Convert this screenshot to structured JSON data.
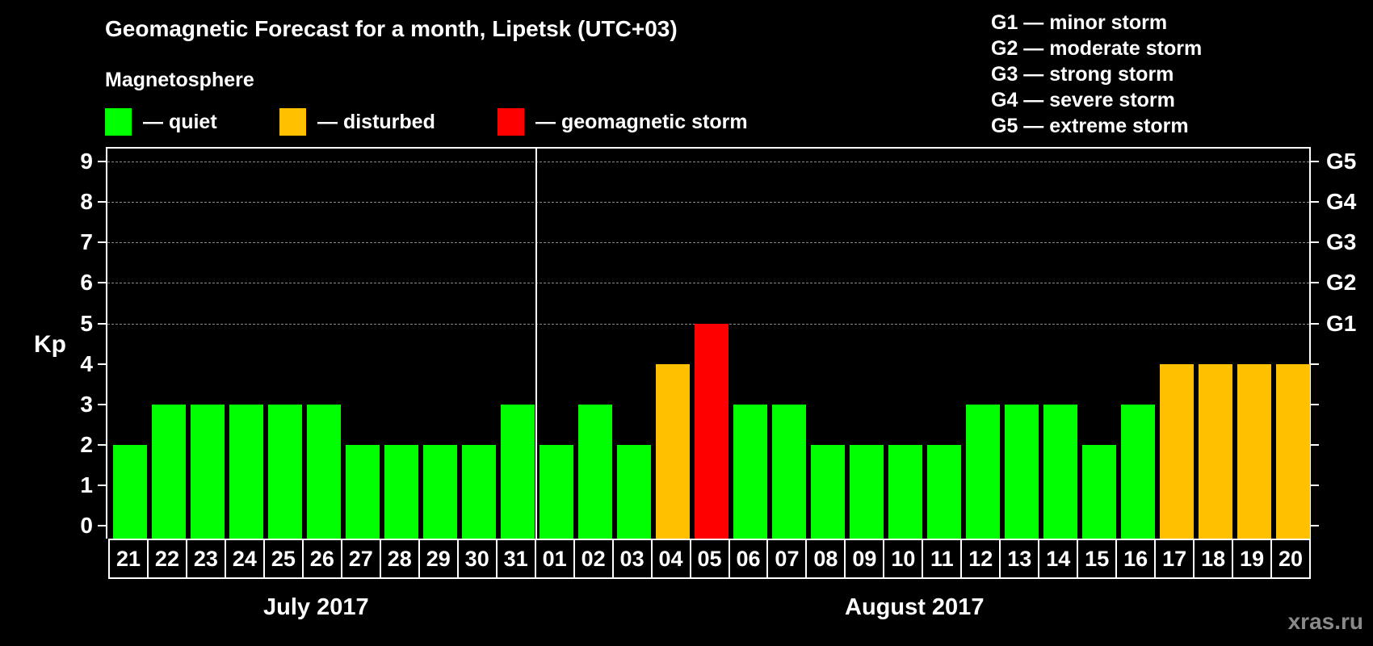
{
  "title": "Geomagnetic Forecast for a month, Lipetsk (UTC+03)",
  "legend": {
    "heading": "Magnetosphere",
    "items": [
      {
        "label": "— quiet",
        "color": "#00ff00"
      },
      {
        "label": "— disturbed",
        "color": "#ffc000"
      },
      {
        "label": "— geomagnetic storm",
        "color": "#ff0000"
      }
    ]
  },
  "storm_scale": [
    "G1 — minor storm",
    "G2 — moderate storm",
    "G3 — strong storm",
    "G4 — severe storm",
    "G5 — extreme storm"
  ],
  "axis": {
    "ylabel": "Kp",
    "yticks": [
      "0",
      "1",
      "2",
      "3",
      "4",
      "5",
      "6",
      "7",
      "8",
      "9"
    ],
    "right_labels": [
      {
        "kp": 5,
        "label": "G1"
      },
      {
        "kp": 6,
        "label": "G2"
      },
      {
        "kp": 7,
        "label": "G3"
      },
      {
        "kp": 8,
        "label": "G4"
      },
      {
        "kp": 9,
        "label": "G5"
      }
    ]
  },
  "months": [
    {
      "label": "July 2017"
    },
    {
      "label": "August 2017"
    }
  ],
  "watermark": "xras.ru",
  "colors": {
    "quiet": "#00ff00",
    "disturbed": "#ffc000",
    "storm": "#ff0000",
    "background": "#000000",
    "grid": "#888888"
  },
  "chart_data": {
    "type": "bar",
    "title": "Geomagnetic Forecast for a month, Lipetsk (UTC+03)",
    "xlabel": "July 2017 / August 2017",
    "ylabel": "Kp",
    "ylim": [
      0,
      9
    ],
    "grid": "dashed horizontal at Kp 5-9",
    "legend_position": "top",
    "categories": [
      "21",
      "22",
      "23",
      "24",
      "25",
      "26",
      "27",
      "28",
      "29",
      "30",
      "31",
      "01",
      "02",
      "03",
      "04",
      "05",
      "06",
      "07",
      "08",
      "09",
      "10",
      "11",
      "12",
      "13",
      "14",
      "15",
      "16",
      "17",
      "18",
      "19",
      "20"
    ],
    "values": [
      2,
      3,
      3,
      3,
      3,
      3,
      2,
      2,
      2,
      2,
      3,
      2,
      3,
      2,
      4,
      5,
      3,
      3,
      2,
      2,
      2,
      2,
      3,
      3,
      3,
      2,
      3,
      4,
      4,
      4,
      4
    ],
    "status": [
      "quiet",
      "quiet",
      "quiet",
      "quiet",
      "quiet",
      "quiet",
      "quiet",
      "quiet",
      "quiet",
      "quiet",
      "quiet",
      "quiet",
      "quiet",
      "quiet",
      "disturbed",
      "storm",
      "quiet",
      "quiet",
      "quiet",
      "quiet",
      "quiet",
      "quiet",
      "quiet",
      "quiet",
      "quiet",
      "quiet",
      "quiet",
      "disturbed",
      "disturbed",
      "disturbed",
      "disturbed"
    ],
    "month_split_after": "31",
    "right_axis": {
      "5": "G1",
      "6": "G2",
      "7": "G3",
      "8": "G4",
      "9": "G5"
    }
  }
}
